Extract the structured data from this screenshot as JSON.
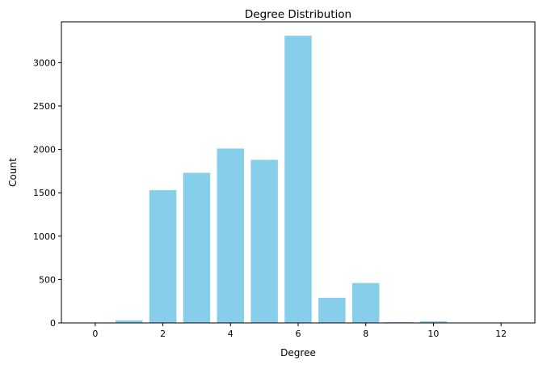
{
  "chart_data": {
    "type": "bar",
    "title": "Degree Distribution",
    "xlabel": "Degree",
    "ylabel": "Count",
    "x": [
      1,
      2,
      3,
      4,
      5,
      6,
      7,
      8,
      9,
      10
    ],
    "values": [
      30,
      1530,
      1730,
      2010,
      1880,
      3310,
      290,
      460,
      8,
      18
    ],
    "bar_width": 0.8,
    "bar_color": "#87ceeb",
    "xlim": [
      -1,
      13
    ],
    "ylim": [
      0,
      3470
    ],
    "xticks": [
      0,
      2,
      4,
      6,
      8,
      10,
      12
    ],
    "yticks": [
      0,
      500,
      1000,
      1500,
      2000,
      2500,
      3000
    ],
    "xtick_labels": [
      "0",
      "2",
      "4",
      "6",
      "8",
      "10",
      "12"
    ],
    "ytick_labels": [
      "0",
      "500",
      "1000",
      "1500",
      "2000",
      "2500",
      "3000"
    ],
    "grid": false,
    "legend": "none"
  }
}
